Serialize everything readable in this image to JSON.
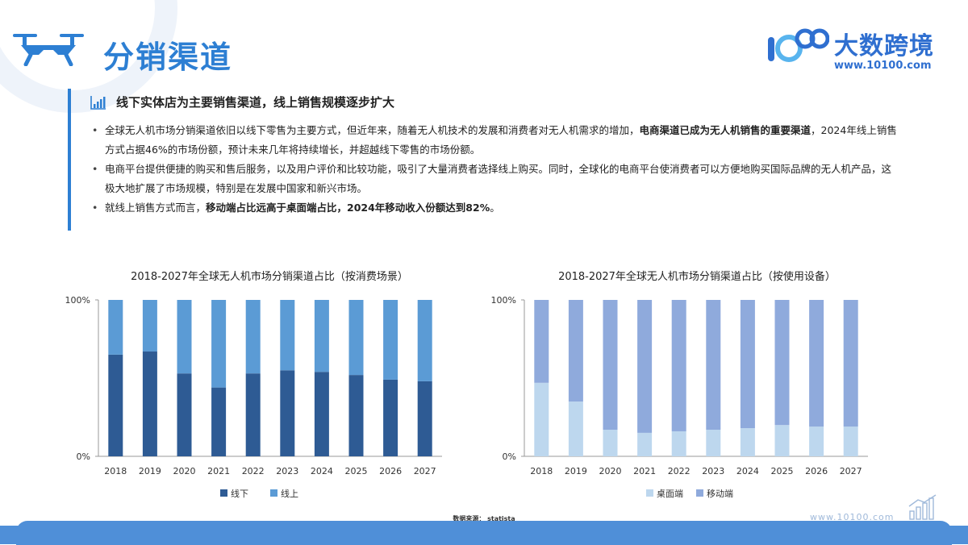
{
  "page": {
    "title": "分销渠道",
    "logo_text": "大数跨境",
    "logo_url": "www.10100.com",
    "section_title": "线下实体店为主要销售渠道，线上销售规模逐步扩大",
    "bullets": [
      {
        "parts": [
          {
            "text": "全球无人机市场分销渠道依旧以线下零售为主要方式，但近年来，随着无人机技术的发展和消费者对无人机需求的增加，",
            "bold": false
          },
          {
            "text": "电商渠道已成为无人机销售的重要渠道",
            "bold": true
          },
          {
            "text": "，2024年线上销售方式占据46%的市场份额，预计未来几年将持续增长，并超越线下零售的市场份额。",
            "bold": false
          }
        ]
      },
      {
        "parts": [
          {
            "text": "电商平台提供便捷的购买和售后服务，以及用户评价和比较功能，吸引了大量消费者选择线上购买。同时，全球化的电商平台使消费者可以方便地购买国际品牌的无人机产品，这极大地扩展了市场规模，特别是在发展中国家和新兴市场。",
            "bold": false
          }
        ]
      },
      {
        "parts": [
          {
            "text": "就线上销售方式而言，",
            "bold": false
          },
          {
            "text": "移动端占比远高于桌面端占比，2024年移动收入份额达到82%",
            "bold": true
          },
          {
            "text": "。",
            "bold": false
          }
        ]
      }
    ],
    "source": "数据来源： statista",
    "footer_url": "www.10100.com"
  },
  "chart_data": [
    {
      "type": "bar",
      "stacked": true,
      "title": "2018-2027年全球无人机市场分销渠道占比（按消费场景）",
      "categories": [
        "2018",
        "2019",
        "2020",
        "2021",
        "2022",
        "2023",
        "2024",
        "2025",
        "2026",
        "2027"
      ],
      "series": [
        {
          "name": "线下",
          "color": "#2e5b94",
          "values": [
            65,
            67,
            53,
            44,
            53,
            55,
            54,
            52,
            49,
            48
          ]
        },
        {
          "name": "线上",
          "color": "#5b9bd5",
          "values": [
            35,
            33,
            47,
            56,
            47,
            45,
            46,
            48,
            51,
            52
          ]
        }
      ],
      "yticks": [
        "0%",
        "100%"
      ],
      "ylim": [
        0,
        100
      ],
      "legend": "bottom"
    },
    {
      "type": "bar",
      "stacked": true,
      "title": "2018-2027年全球无人机市场分销渠道占比（按使用设备）",
      "categories": [
        "2018",
        "2019",
        "2020",
        "2021",
        "2022",
        "2023",
        "2024",
        "2025",
        "2026",
        "2027"
      ],
      "series": [
        {
          "name": "桌面端",
          "color": "#bdd7ee",
          "values": [
            47,
            35,
            17,
            15,
            16,
            17,
            18,
            20,
            19,
            19
          ]
        },
        {
          "name": "移动端",
          "color": "#8faadc",
          "values": [
            53,
            65,
            83,
            85,
            84,
            83,
            82,
            80,
            81,
            81
          ]
        }
      ],
      "yticks": [
        "0%",
        "100%"
      ],
      "ylim": [
        0,
        100
      ],
      "legend": "bottom"
    }
  ]
}
